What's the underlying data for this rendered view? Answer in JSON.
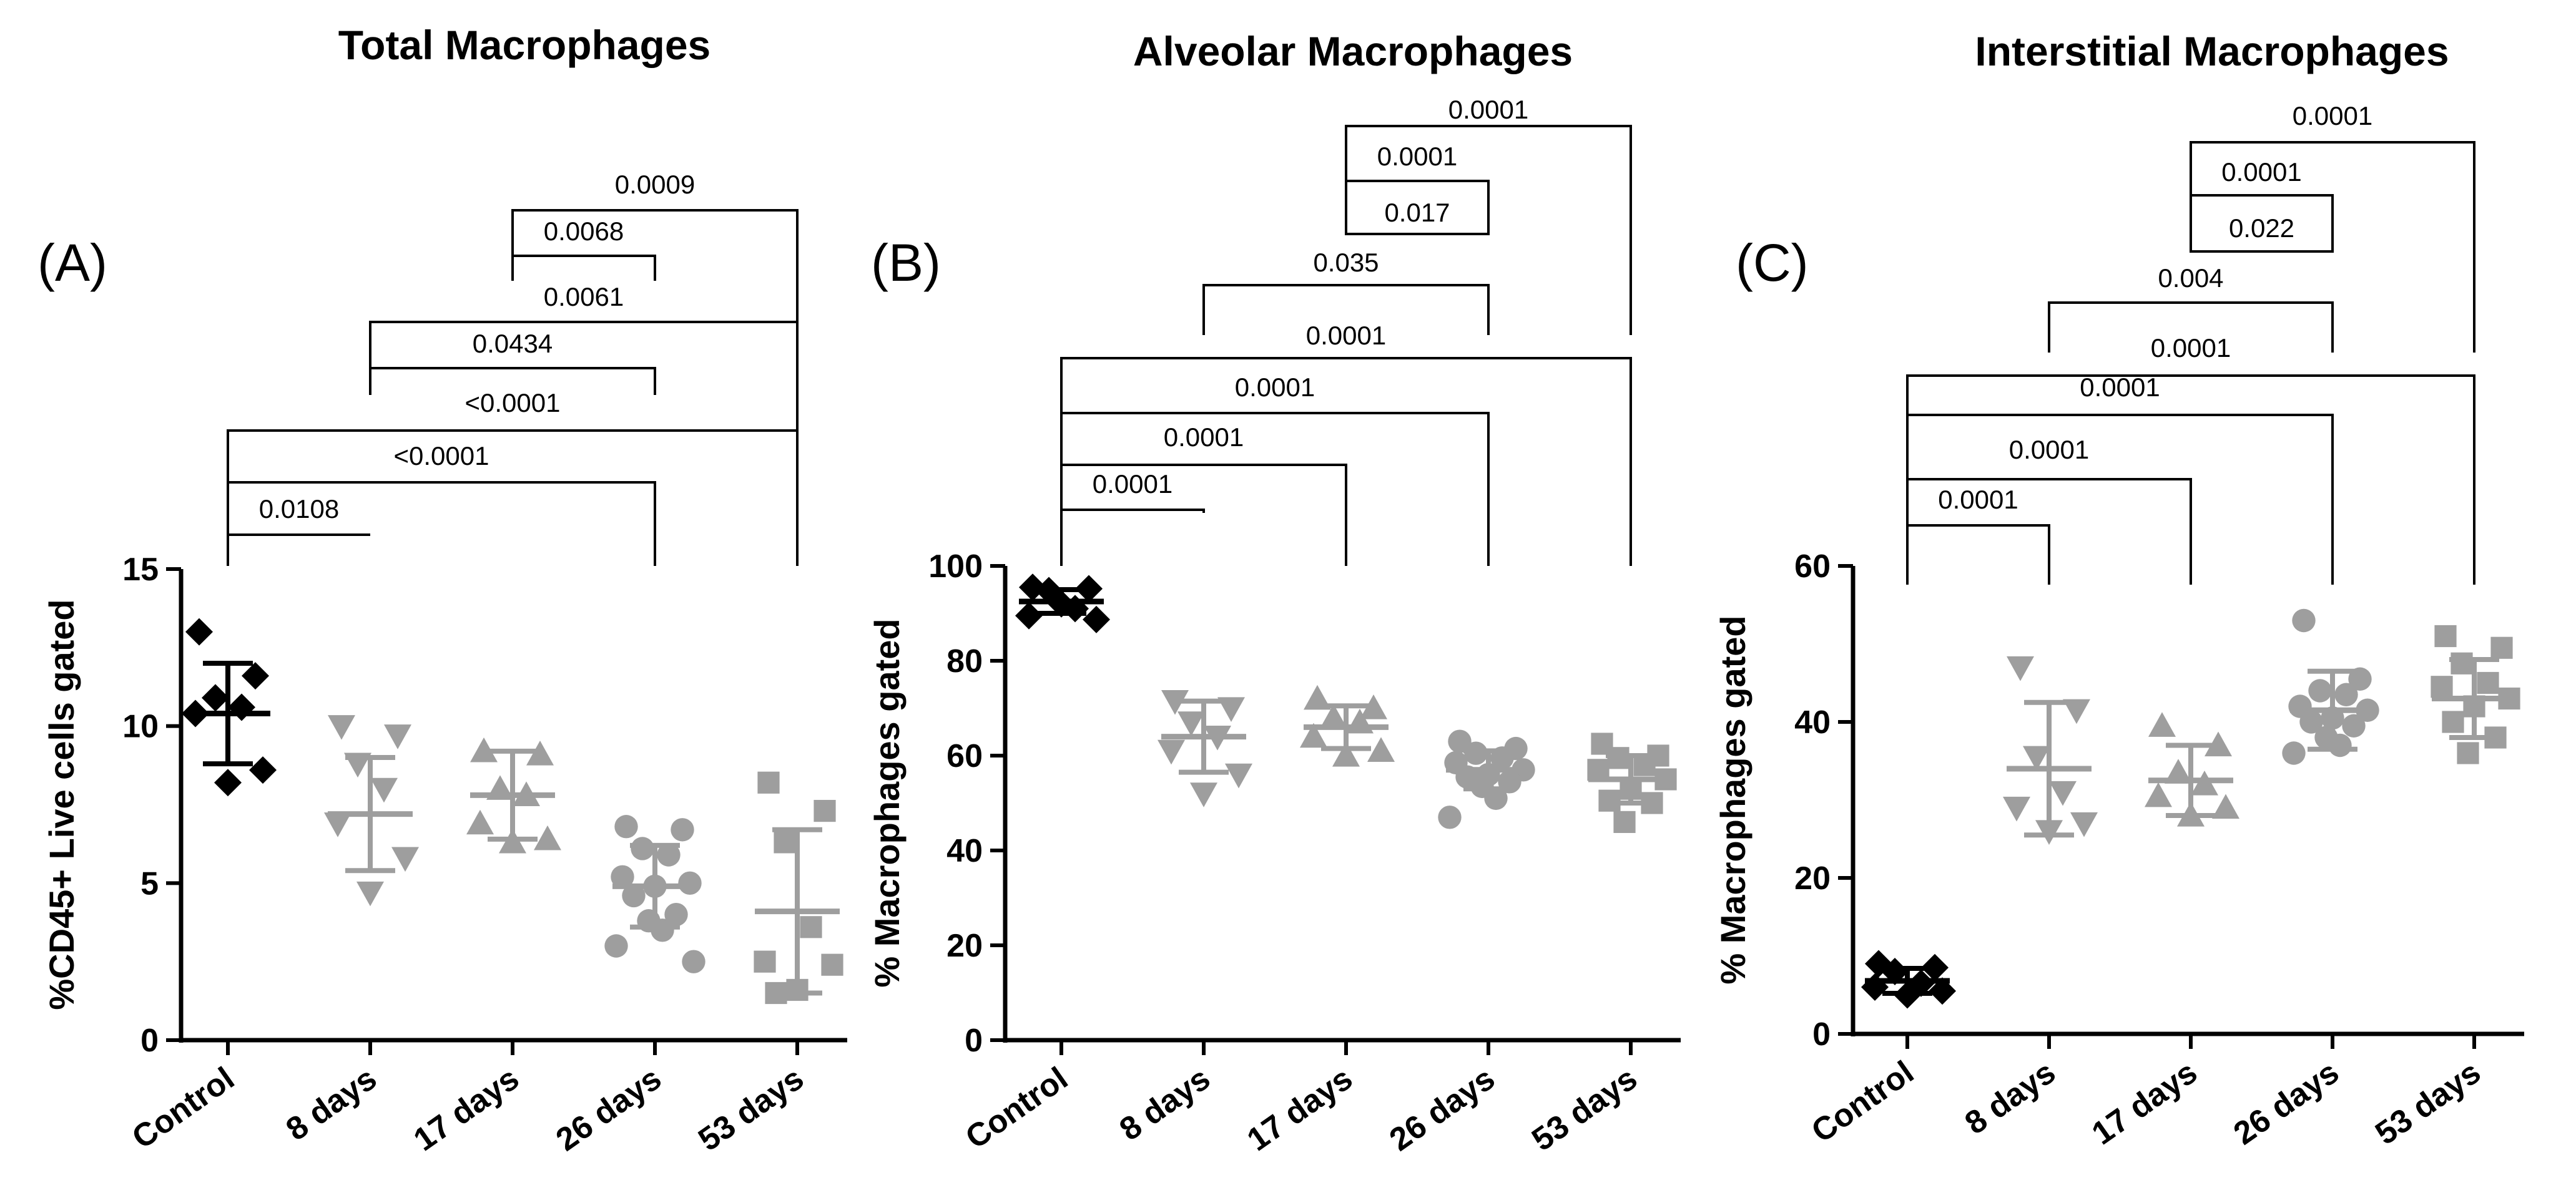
{
  "chart_data": [
    {
      "type": "scatter",
      "panel_label": "(A)",
      "title": "Total Macrophages",
      "ylabel": "%CD45+ Live cells gated",
      "ylim": [
        0,
        15
      ],
      "yticks": [
        0,
        5,
        10,
        15
      ],
      "categories": [
        "Control",
        "8 days",
        "17 days",
        "26 days",
        "53 days"
      ],
      "colors": [
        "#000000",
        "#9e9e9e",
        "#9e9e9e",
        "#9e9e9e",
        "#9e9e9e"
      ],
      "markers": [
        "diamond",
        "triangle-down",
        "triangle-up",
        "circle",
        "square"
      ],
      "points": [
        [
          13.0,
          11.6,
          10.9,
          10.6,
          10.4,
          8.6,
          8.2
        ],
        [
          10.0,
          9.7,
          8.8,
          8.0,
          6.9,
          5.8,
          4.7
        ],
        [
          9.2,
          9.1,
          8.0,
          7.8,
          6.9,
          6.4,
          6.3
        ],
        [
          6.8,
          6.7,
          6.1,
          5.9,
          5.2,
          5.0,
          4.9,
          4.6,
          4.0,
          3.8,
          3.5,
          3.0,
          2.5
        ],
        [
          8.2,
          7.3,
          6.3,
          3.6,
          2.5,
          2.4,
          1.6,
          1.5
        ]
      ],
      "mean": [
        10.4,
        7.2,
        7.8,
        4.9,
        4.1
      ],
      "sd": [
        1.6,
        1.8,
        1.4,
        1.3,
        2.6
      ],
      "comparisons": [
        {
          "from": 0,
          "to": 1,
          "p": "0.0108"
        },
        {
          "from": 0,
          "to": 3,
          "p": "<0.0001"
        },
        {
          "from": 0,
          "to": 4,
          "p": "<0.0001"
        },
        {
          "from": 1,
          "to": 3,
          "p": "0.0434"
        },
        {
          "from": 1,
          "to": 4,
          "p": "0.0061"
        },
        {
          "from": 2,
          "to": 3,
          "p": "0.0068"
        },
        {
          "from": 2,
          "to": 4,
          "p": "0.0009"
        }
      ]
    },
    {
      "type": "scatter",
      "panel_label": "(B)",
      "title": "Alveolar Macrophages",
      "ylabel": "% Macrophages gated",
      "ylim": [
        0,
        100
      ],
      "yticks": [
        0,
        20,
        40,
        60,
        80,
        100
      ],
      "categories": [
        "Control",
        "8 days",
        "17 days",
        "26 days",
        "53 days"
      ],
      "colors": [
        "#000000",
        "#9e9e9e",
        "#9e9e9e",
        "#9e9e9e",
        "#9e9e9e"
      ],
      "markers": [
        "diamond",
        "triangle-down",
        "triangle-up",
        "circle",
        "square"
      ],
      "points": [
        [
          95.5,
          95.2,
          94.8,
          91.0,
          89.5,
          88.7,
          92.0
        ],
        [
          71.5,
          70.0,
          67.0,
          64.0,
          61.0,
          56.0,
          52.0
        ],
        [
          72.0,
          70.0,
          68.0,
          67.0,
          64.0,
          61.0,
          60.0
        ],
        [
          63.0,
          61.5,
          60.5,
          59.5,
          58.5,
          57.0,
          56.0,
          55.5,
          54.5,
          53.5,
          51.0,
          47.0
        ],
        [
          62.5,
          60.0,
          59.5,
          58.0,
          57.0,
          55.0,
          53.0,
          50.5,
          50.0,
          46.0
        ]
      ],
      "mean": [
        92.5,
        64.0,
        66.0,
        57.0,
        55.0
      ],
      "sd": [
        2.5,
        7.5,
        4.5,
        4.0,
        5.0
      ],
      "comparisons": [
        {
          "from": 0,
          "to": 1,
          "p": "0.0001"
        },
        {
          "from": 0,
          "to": 2,
          "p": "0.0001"
        },
        {
          "from": 0,
          "to": 3,
          "p": "0.0001"
        },
        {
          "from": 0,
          "to": 4,
          "p": "0.0001"
        },
        {
          "from": 1,
          "to": 3,
          "p": "0.035"
        },
        {
          "from": 2,
          "to": 3,
          "p": "0.017"
        },
        {
          "from": 2,
          "to": 3,
          "p": "0.0001"
        },
        {
          "from": 2,
          "to": 4,
          "p": "0.0001"
        }
      ]
    },
    {
      "type": "scatter",
      "panel_label": "(C)",
      "title": "Interstitial Macrophages",
      "ylabel": "% Macrophages gated",
      "ylim": [
        0,
        60
      ],
      "yticks": [
        0,
        20,
        40,
        60
      ],
      "categories": [
        "Control",
        "8 days",
        "17 days",
        "26 days",
        "53 days"
      ],
      "colors": [
        "#000000",
        "#9e9e9e",
        "#9e9e9e",
        "#9e9e9e",
        "#9e9e9e"
      ],
      "markers": [
        "diamond",
        "triangle-down",
        "triangle-up",
        "circle",
        "square"
      ],
      "points": [
        [
          9.0,
          8.5,
          8.0,
          6.5,
          6.0,
          5.5,
          5.0
        ],
        [
          47.0,
          41.5,
          35.5,
          31.0,
          29.0,
          27.0,
          26.0
        ],
        [
          39.5,
          37.0,
          33.5,
          32.0,
          30.5,
          29.0,
          28.0
        ],
        [
          53.0,
          45.5,
          44.0,
          43.5,
          42.0,
          41.5,
          40.5,
          40.0,
          39.5,
          38.0,
          37.0,
          36.0
        ],
        [
          51.0,
          49.5,
          47.5,
          45.0,
          44.5,
          43.0,
          42.0,
          40.0,
          38.0,
          36.0
        ]
      ],
      "mean": [
        6.8,
        34.0,
        32.5,
        41.5,
        43.0
      ],
      "sd": [
        1.6,
        8.5,
        4.5,
        5.0,
        5.0
      ],
      "comparisons": [
        {
          "from": 0,
          "to": 1,
          "p": "0.0001"
        },
        {
          "from": 0,
          "to": 2,
          "p": "0.0001"
        },
        {
          "from": 0,
          "to": 3,
          "p": "0.0001"
        },
        {
          "from": 0,
          "to": 4,
          "p": "0.0001"
        },
        {
          "from": 1,
          "to": 3,
          "p": "0.004"
        },
        {
          "from": 2,
          "to": 3,
          "p": "0.022"
        },
        {
          "from": 2,
          "to": 3,
          "p": "0.0001"
        },
        {
          "from": 2,
          "to": 4,
          "p": "0.0001"
        }
      ]
    }
  ]
}
